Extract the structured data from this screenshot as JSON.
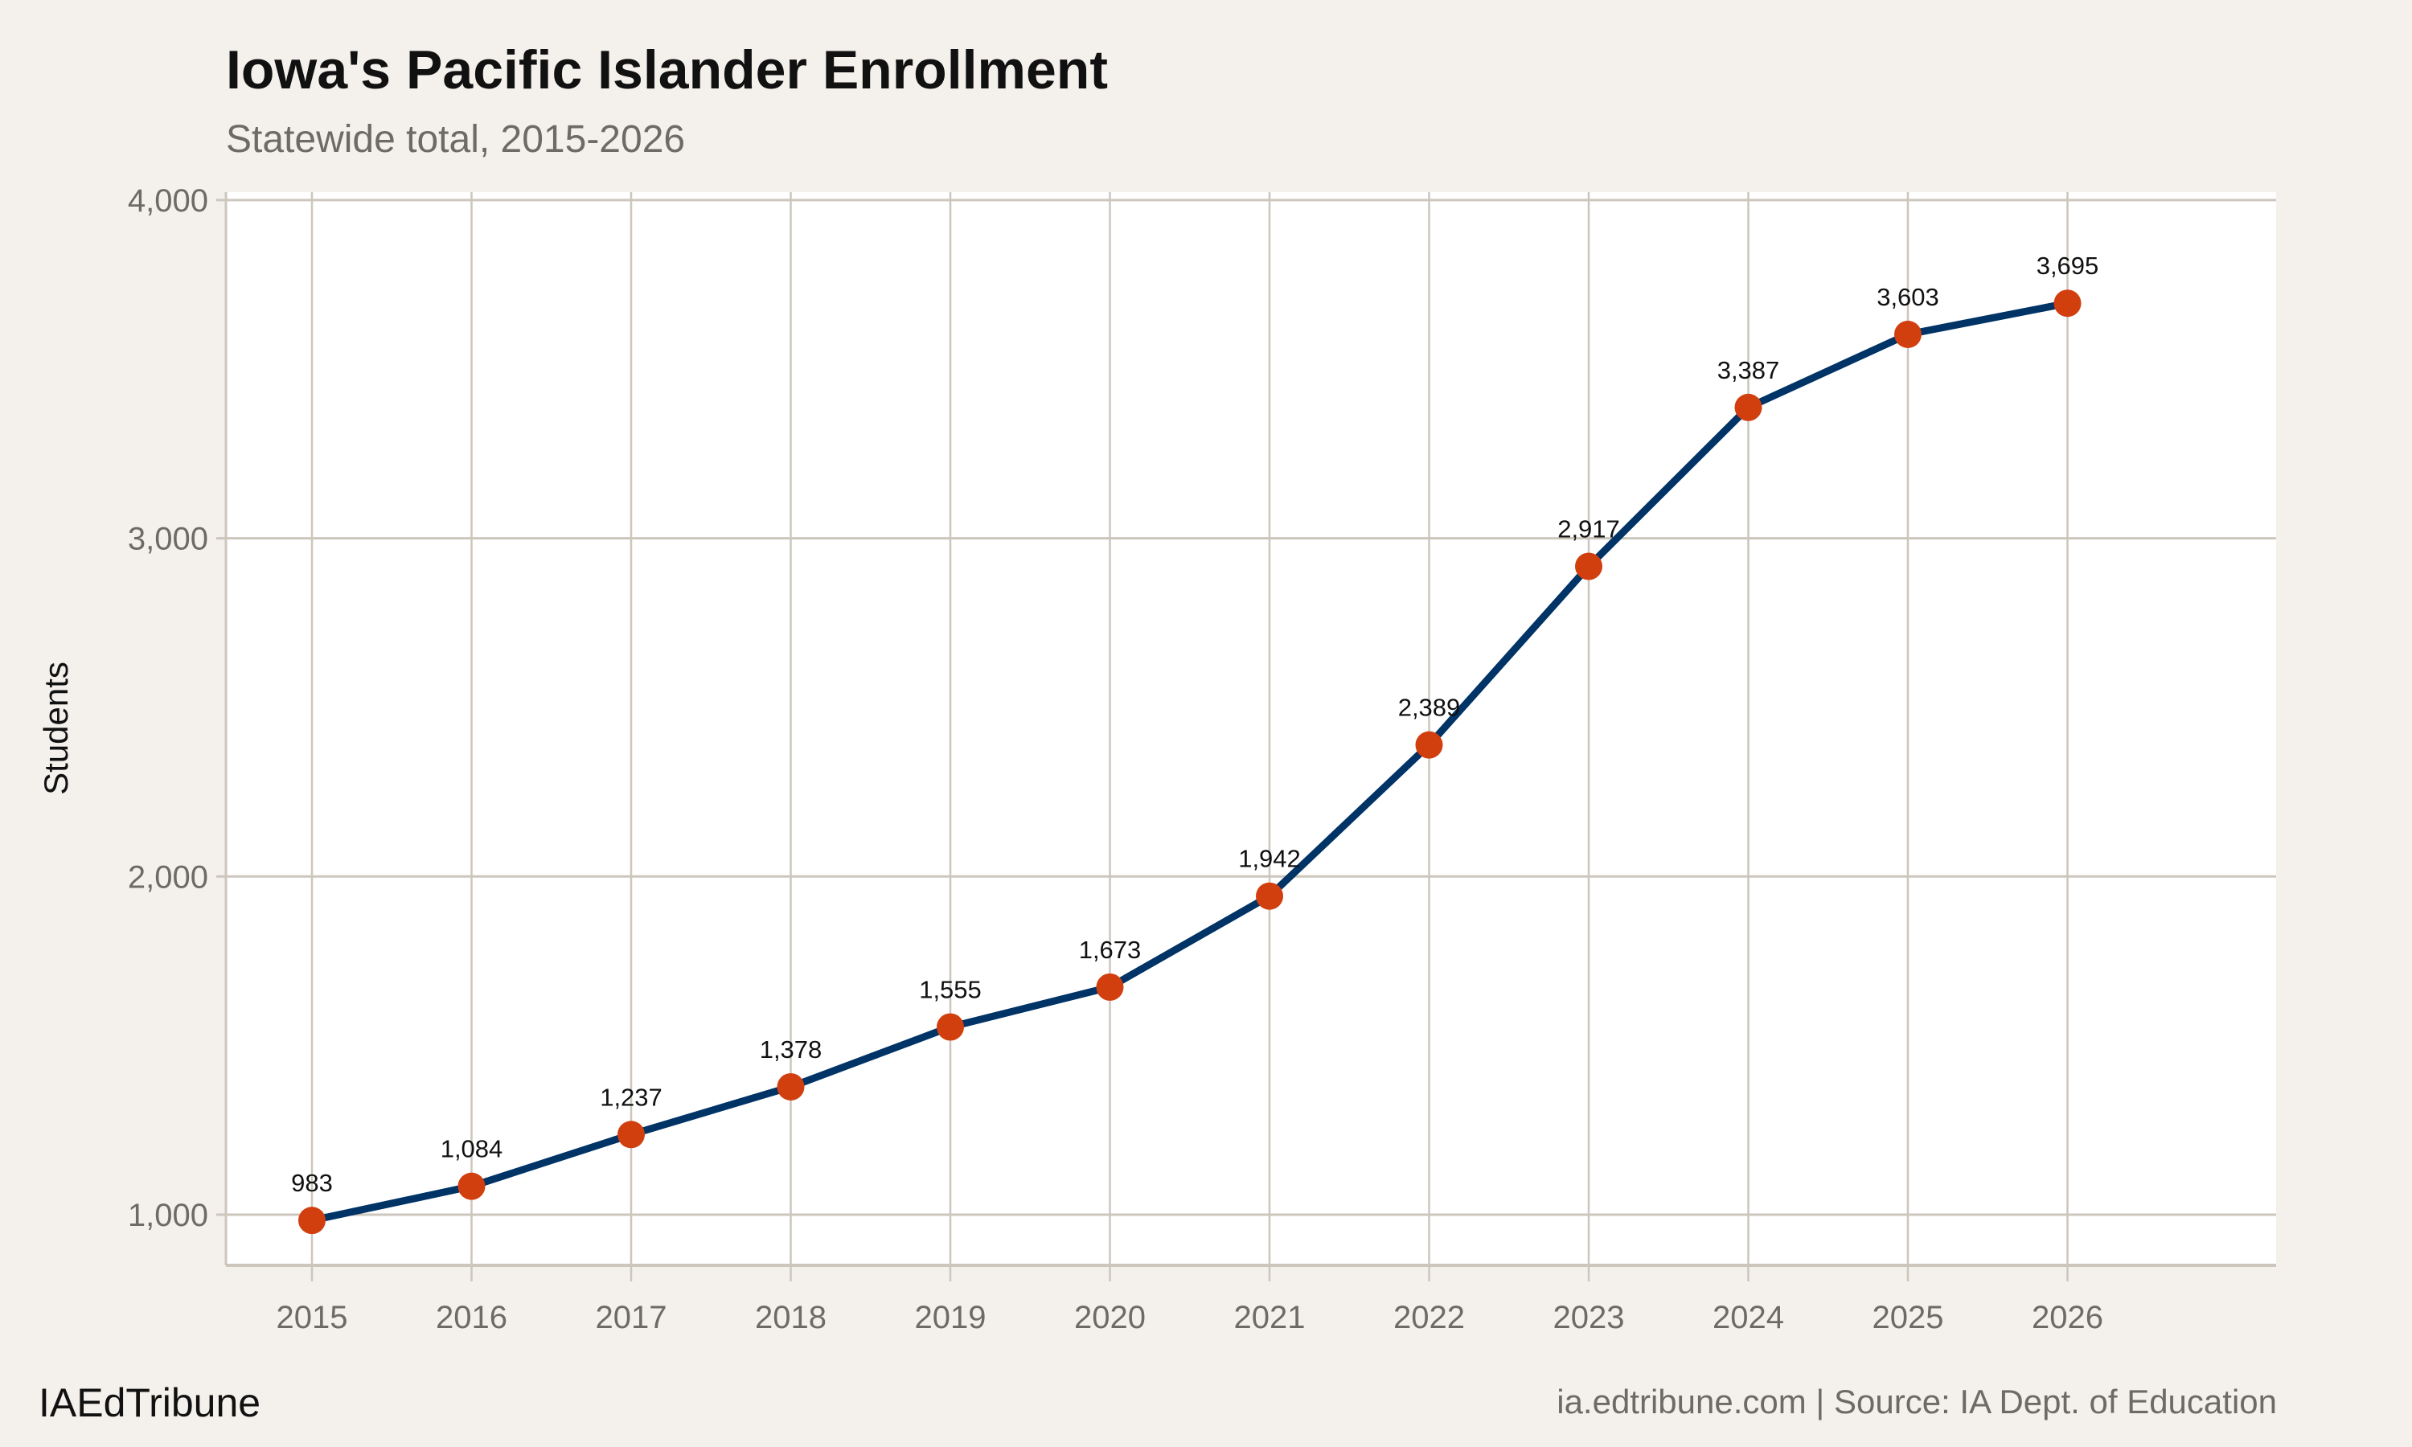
{
  "chart_data": {
    "type": "line",
    "title": "Iowa's Pacific Islander Enrollment",
    "subtitle": "Statewide total, 2015-2026",
    "xlabel": "",
    "ylabel": "Students",
    "x": [
      2015,
      2016,
      2017,
      2018,
      2019,
      2020,
      2021,
      2022,
      2023,
      2024,
      2025,
      2026
    ],
    "values": [
      983,
      1084,
      1237,
      1378,
      1555,
      1673,
      1942,
      2389,
      2917,
      3387,
      3603,
      3695
    ],
    "data_labels": [
      "983",
      "1,084",
      "1,237",
      "1,378",
      "1,555",
      "1,673",
      "1,942",
      "2,389",
      "2,917",
      "3,387",
      "3,603",
      "3,695"
    ],
    "x_ticks": [
      "2015",
      "2016",
      "2017",
      "2018",
      "2019",
      "2020",
      "2021",
      "2022",
      "2023",
      "2024",
      "2025",
      "2026"
    ],
    "y_ticks": [
      1000,
      2000,
      3000,
      4000
    ],
    "y_tick_labels": [
      "1,000",
      "2,000",
      "3,000",
      "4,000"
    ],
    "ylim": [
      850,
      4010
    ],
    "grid": true,
    "legend": "none",
    "colors": {
      "line": "#003366",
      "points": "#d13f0f",
      "background": "#f4f1ec",
      "panel": "#ffffff",
      "grid": "#ccc6bd"
    }
  },
  "footer": {
    "brand": "IAEdTribune",
    "source": "ia.edtribune.com | Source: IA Dept. of Education"
  }
}
